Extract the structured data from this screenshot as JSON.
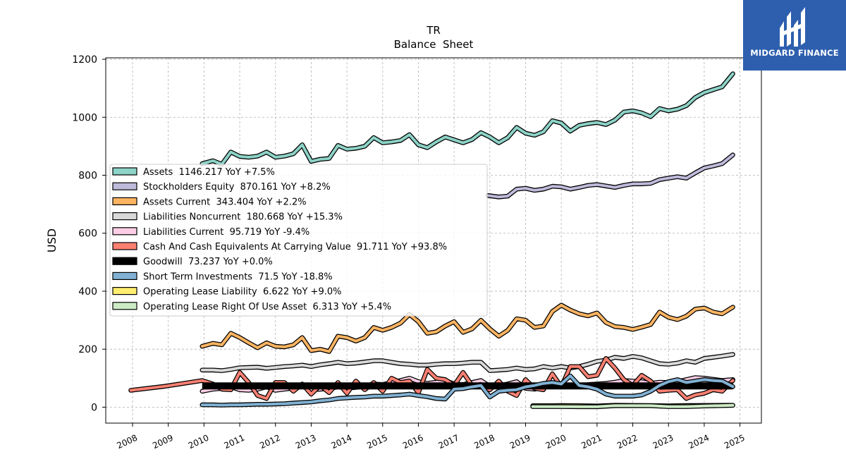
{
  "brand": {
    "name": "MIDGARD FINANCE",
    "logo_icon": "midgard-logo-icon",
    "color": "#2d5fae"
  },
  "chart_data": {
    "type": "line",
    "title": "TR",
    "subtitle": "Balance  Sheet",
    "xlabel": "",
    "ylabel": "USD",
    "xlim": [
      2007.25,
      2025.6
    ],
    "ylim": [
      -55,
      1205
    ],
    "x_ticks": [
      2008,
      2009,
      2010,
      2011,
      2012,
      2013,
      2014,
      2015,
      2016,
      2017,
      2018,
      2019,
      2020,
      2021,
      2022,
      2023,
      2024,
      2025
    ],
    "y_ticks": [
      0,
      200,
      400,
      600,
      800,
      1000,
      1200
    ],
    "grid": true,
    "legend_position": "upper-left",
    "series": [
      {
        "name": "Assets",
        "legend": "Assets  1146.217 YoY +7.5%",
        "color": "#8dd3c7",
        "width": 4,
        "x": [
          2009.95,
          2010.25,
          2010.5,
          2010.75,
          2011.0,
          2011.25,
          2011.5,
          2011.75,
          2012.0,
          2012.25,
          2012.5,
          2012.75,
          2013.0,
          2013.25,
          2013.5,
          2013.75,
          2014.0,
          2014.25,
          2014.5,
          2014.75,
          2015.0,
          2015.25,
          2015.5,
          2015.75,
          2016.0,
          2016.25,
          2016.5,
          2016.75,
          2017.0,
          2017.25,
          2017.5,
          2017.75,
          2018.0,
          2018.25,
          2018.5,
          2018.75,
          2019.0,
          2019.25,
          2019.5,
          2019.75,
          2020.0,
          2020.25,
          2020.5,
          2020.75,
          2021.0,
          2021.25,
          2021.5,
          2021.75,
          2022.0,
          2022.25,
          2022.5,
          2022.75,
          2023.0,
          2023.25,
          2023.5,
          2023.75,
          2024.0,
          2024.25,
          2024.5,
          2024.8
        ],
        "y": [
          840,
          850,
          838,
          880,
          865,
          862,
          866,
          880,
          862,
          866,
          874,
          905,
          848,
          855,
          858,
          903,
          890,
          893,
          900,
          930,
          912,
          915,
          920,
          940,
          905,
          895,
          915,
          932,
          922,
          912,
          923,
          947,
          932,
          912,
          930,
          965,
          945,
          938,
          950,
          988,
          980,
          952,
          972,
          978,
          982,
          975,
          990,
          1018,
          1022,
          1015,
          1002,
          1030,
          1022,
          1028,
          1040,
          1068,
          1085,
          1095,
          1105,
          1150
        ]
      },
      {
        "name": "Stockholders Equity",
        "legend": "Stockholders Equity  870.161 YoY +8.2%",
        "color": "#bebada",
        "width": 4,
        "x": [
          2017.95,
          2018.25,
          2018.5,
          2018.75,
          2019.0,
          2019.25,
          2019.5,
          2019.75,
          2020.0,
          2020.25,
          2020.5,
          2020.75,
          2021.0,
          2021.25,
          2021.5,
          2021.75,
          2022.0,
          2022.25,
          2022.5,
          2022.75,
          2023.0,
          2023.25,
          2023.5,
          2023.75,
          2024.0,
          2024.25,
          2024.5,
          2024.8
        ],
        "y": [
          730,
          725,
          728,
          752,
          755,
          748,
          752,
          762,
          760,
          752,
          758,
          765,
          768,
          763,
          758,
          765,
          770,
          770,
          772,
          785,
          790,
          795,
          790,
          808,
          825,
          832,
          840,
          870
        ]
      },
      {
        "name": "Assets Current",
        "legend": "Assets Current  343.404 YoY +2.2%",
        "color": "#fdb462",
        "width": 4,
        "x": [
          2009.95,
          2010.25,
          2010.5,
          2010.75,
          2011.0,
          2011.25,
          2011.5,
          2011.75,
          2012.0,
          2012.25,
          2012.5,
          2012.75,
          2013.0,
          2013.25,
          2013.5,
          2013.75,
          2014.0,
          2014.25,
          2014.5,
          2014.75,
          2015.0,
          2015.25,
          2015.5,
          2015.75,
          2016.0,
          2016.25,
          2016.5,
          2016.75,
          2017.0,
          2017.25,
          2017.5,
          2017.75,
          2018.0,
          2018.25,
          2018.5,
          2018.75,
          2019.0,
          2019.25,
          2019.5,
          2019.75,
          2020.0,
          2020.25,
          2020.5,
          2020.75,
          2021.0,
          2021.25,
          2021.5,
          2021.75,
          2022.0,
          2022.25,
          2022.5,
          2022.75,
          2023.0,
          2023.25,
          2023.5,
          2023.75,
          2024.0,
          2024.25,
          2024.5,
          2024.8
        ],
        "y": [
          210,
          220,
          215,
          255,
          240,
          222,
          205,
          222,
          210,
          208,
          215,
          240,
          195,
          200,
          192,
          245,
          240,
          228,
          240,
          275,
          265,
          275,
          290,
          320,
          295,
          255,
          260,
          280,
          295,
          258,
          270,
          300,
          270,
          245,
          265,
          305,
          300,
          275,
          280,
          330,
          352,
          335,
          322,
          315,
          325,
          292,
          278,
          275,
          268,
          276,
          285,
          328,
          310,
          302,
          314,
          338,
          342,
          328,
          322,
          345
        ]
      },
      {
        "name": "Liabilities Noncurrent",
        "legend": "Liabilities Noncurrent  180.668 YoY +15.3%",
        "color": "#d9d9d9",
        "width": 4,
        "x": [
          2009.95,
          2010.25,
          2010.5,
          2010.75,
          2011.0,
          2011.25,
          2011.5,
          2011.75,
          2012.0,
          2012.25,
          2012.5,
          2012.75,
          2013.0,
          2013.25,
          2013.5,
          2013.75,
          2014.0,
          2014.25,
          2014.5,
          2014.75,
          2015.0,
          2015.25,
          2015.5,
          2015.75,
          2016.0,
          2016.25,
          2016.5,
          2016.75,
          2017.0,
          2017.25,
          2017.5,
          2017.75,
          2018.0,
          2018.25,
          2018.5,
          2018.75,
          2019.0,
          2019.25,
          2019.5,
          2019.75,
          2020.0,
          2020.25,
          2020.5,
          2020.75,
          2021.0,
          2021.25,
          2021.5,
          2021.75,
          2022.0,
          2022.25,
          2022.5,
          2022.75,
          2023.0,
          2023.25,
          2023.5,
          2023.75,
          2024.0,
          2024.25,
          2024.5,
          2024.8
        ],
        "y": [
          128,
          128,
          126,
          130,
          136,
          137,
          138,
          134,
          137,
          140,
          142,
          145,
          140,
          146,
          150,
          155,
          150,
          152,
          156,
          160,
          160,
          155,
          150,
          148,
          145,
          145,
          148,
          150,
          150,
          152,
          155,
          155,
          126,
          128,
          130,
          135,
          130,
          132,
          140,
          135,
          140,
          135,
          140,
          148,
          158,
          162,
          172,
          168,
          175,
          170,
          160,
          150,
          148,
          152,
          160,
          155,
          168,
          172,
          176,
          182
        ]
      },
      {
        "name": "Liabilities Current",
        "legend": "Liabilities Current  95.719 YoY -9.4%",
        "color": "#fccde5",
        "width": 4,
        "x": [
          2009.95,
          2010.25,
          2010.5,
          2010.75,
          2011.0,
          2011.25,
          2011.5,
          2011.75,
          2012.0,
          2012.25,
          2012.5,
          2012.75,
          2013.0,
          2013.25,
          2013.5,
          2013.75,
          2014.0,
          2014.25,
          2014.5,
          2014.75,
          2015.0,
          2015.25,
          2015.5,
          2015.75,
          2016.0,
          2016.25,
          2016.5,
          2016.75,
          2017.0,
          2017.25,
          2017.5,
          2017.75,
          2018.0,
          2018.25,
          2018.5,
          2018.75,
          2019.0,
          2019.25,
          2019.5,
          2019.75,
          2020.0,
          2020.25,
          2020.5,
          2020.75,
          2021.0,
          2021.25,
          2021.5,
          2021.75,
          2022.0,
          2022.25,
          2022.5,
          2022.75,
          2023.0,
          2023.25,
          2023.5,
          2023.75,
          2024.0,
          2024.25,
          2024.5,
          2024.8
        ],
        "y": [
          55,
          62,
          65,
          70,
          60,
          58,
          62,
          70,
          58,
          62,
          66,
          75,
          60,
          62,
          64,
          70,
          66,
          68,
          72,
          80,
          78,
          85,
          92,
          100,
          88,
          82,
          86,
          92,
          80,
          78,
          85,
          92,
          72,
          75,
          80,
          88,
          65,
          62,
          68,
          75,
          80,
          72,
          72,
          78,
          80,
          82,
          86,
          92,
          90,
          88,
          82,
          86,
          85,
          88,
          95,
          102,
          100,
          96,
          92,
          95
        ]
      },
      {
        "name": "Cash And Cash Equivalents At Carrying Value",
        "legend": "Cash And Cash Equivalents At Carrying Value  91.711 YoY +93.8%",
        "color": "#fb8072",
        "width": 4,
        "x": [
          2007.95,
          2008.9,
          2009.95,
          2010.25,
          2010.5,
          2010.75,
          2011.0,
          2011.25,
          2011.5,
          2011.75,
          2012.0,
          2012.25,
          2012.5,
          2012.75,
          2013.0,
          2013.25,
          2013.5,
          2013.75,
          2014.0,
          2014.25,
          2014.5,
          2014.75,
          2015.0,
          2015.25,
          2015.5,
          2015.75,
          2016.0,
          2016.25,
          2016.5,
          2016.75,
          2017.0,
          2017.25,
          2017.5,
          2017.75,
          2018.0,
          2018.25,
          2018.5,
          2018.75,
          2019.0,
          2019.25,
          2019.5,
          2019.75,
          2020.0,
          2020.25,
          2020.5,
          2020.75,
          2021.0,
          2021.25,
          2021.5,
          2021.75,
          2022.0,
          2022.25,
          2022.5,
          2022.75,
          2023.0,
          2023.25,
          2023.5,
          2023.75,
          2024.0,
          2024.25,
          2024.5,
          2024.8
        ],
        "y": [
          58,
          72,
          92,
          80,
          62,
          60,
          120,
          85,
          40,
          30,
          85,
          85,
          55,
          80,
          45,
          75,
          50,
          85,
          48,
          90,
          60,
          85,
          55,
          100,
          85,
          90,
          50,
          130,
          100,
          95,
          75,
          120,
          75,
          70,
          60,
          90,
          55,
          40,
          95,
          65,
          60,
          115,
          70,
          140,
          140,
          105,
          110,
          168,
          135,
          95,
          75,
          110,
          90,
          55,
          58,
          60,
          30,
          42,
          48,
          60,
          55,
          92
        ]
      },
      {
        "name": "Goodwill",
        "legend": "Goodwill  73.237 YoY +0.0%",
        "color": "#000000",
        "width": 10,
        "x": [
          2009.95,
          2024.8
        ],
        "y": [
          73.2,
          73.2
        ]
      },
      {
        "name": "Short Term Investments",
        "legend": "Short Term Investments  71.5 YoY -18.8%",
        "color": "#80b1d3",
        "width": 4,
        "x": [
          2009.95,
          2010.25,
          2010.5,
          2010.75,
          2011.0,
          2011.25,
          2011.5,
          2011.75,
          2012.0,
          2012.25,
          2012.5,
          2012.75,
          2013.0,
          2013.25,
          2013.5,
          2013.75,
          2014.0,
          2014.25,
          2014.5,
          2014.75,
          2015.0,
          2015.25,
          2015.5,
          2015.75,
          2016.0,
          2016.25,
          2016.5,
          2016.75,
          2017.0,
          2017.25,
          2017.5,
          2017.75,
          2018.0,
          2018.25,
          2018.5,
          2018.75,
          2019.0,
          2019.25,
          2019.5,
          2019.75,
          2020.0,
          2020.25,
          2020.5,
          2020.75,
          2021.0,
          2021.25,
          2021.5,
          2021.75,
          2022.0,
          2022.25,
          2022.5,
          2022.75,
          2023.0,
          2023.25,
          2023.5,
          2023.75,
          2024.0,
          2024.25,
          2024.5,
          2024.8
        ],
        "y": [
          8,
          8,
          7,
          8,
          8,
          9,
          10,
          10,
          11,
          12,
          14,
          16,
          18,
          22,
          25,
          30,
          32,
          34,
          35,
          38,
          38,
          40,
          42,
          45,
          40,
          36,
          30,
          28,
          62,
          64,
          70,
          75,
          35,
          55,
          58,
          60,
          70,
          75,
          82,
          85,
          80,
          108,
          75,
          70,
          62,
          45,
          38,
          38,
          38,
          42,
          55,
          75,
          88,
          95,
          85,
          90,
          95,
          92,
          90,
          71
        ]
      },
      {
        "name": "Operating Lease Liability",
        "legend": "Operating Lease Liability  6.622 YoY +9.0%",
        "color": "#ffed6f",
        "width": 4,
        "x": [
          2019.2,
          2019.5,
          2019.75,
          2020.0,
          2020.5,
          2021.0,
          2021.5,
          2022.0,
          2022.5,
          2023.0,
          2023.5,
          2024.0,
          2024.8
        ],
        "y": [
          5,
          5,
          5,
          5.5,
          5,
          4,
          6.5,
          6,
          5.5,
          4.5,
          5.5,
          6,
          6.6
        ]
      },
      {
        "name": "Operating Lease Right Of Use Asset",
        "legend": "Operating Lease Right Of Use Asset  6.313 YoY +5.4%",
        "color": "#ccebc5",
        "width": 4,
        "x": [
          2019.2,
          2019.5,
          2019.75,
          2020.0,
          2020.5,
          2021.0,
          2021.5,
          2022.0,
          2022.5,
          2023.0,
          2023.5,
          2024.0,
          2024.8
        ],
        "y": [
          2,
          2,
          2,
          2,
          1.5,
          1.5,
          5,
          5,
          5,
          2,
          2,
          4,
          6.3
        ]
      }
    ]
  }
}
